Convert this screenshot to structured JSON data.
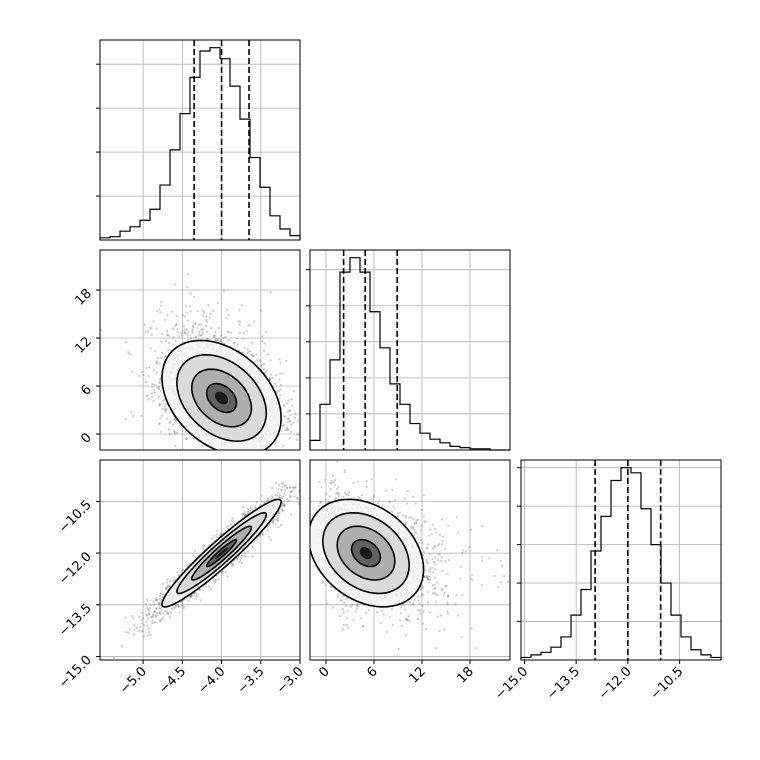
{
  "chart_data": {
    "type": "corner",
    "parameters": [
      {
        "ticks": [
          -5.0,
          -4.5,
          -4.0,
          -3.5,
          -3.0
        ],
        "tick_labels": [
          "−5.0",
          "−4.5",
          "−4.0",
          "−3.5",
          "−3.0"
        ],
        "range": [
          -5.55,
          -3.0
        ],
        "quantiles": [
          -4.35,
          -4.0,
          -3.65
        ]
      },
      {
        "ticks": [
          0,
          6,
          12,
          18
        ],
        "tick_labels": [
          "0",
          "6",
          "12",
          "18"
        ],
        "range": [
          -2.0,
          23.0
        ],
        "quantiles": [
          2.2,
          4.9,
          8.9
        ]
      },
      {
        "ticks": [
          -15.0,
          -13.5,
          -12.0,
          -10.5
        ],
        "tick_labels": [
          "−15.0",
          "−13.5",
          "−12.0",
          "−10.5"
        ],
        "range": [
          -15.1,
          -9.3
        ],
        "quantiles": [
          -12.95,
          -12.0,
          -11.05
        ]
      }
    ],
    "histograms": [
      {
        "param": 0,
        "counts": [
          2,
          3,
          8,
          12,
          18,
          28,
          50,
          82,
          115,
          148,
          172,
          175,
          165,
          140,
          110,
          75,
          48,
          22,
          10,
          4
        ]
      },
      {
        "param": 1,
        "counts": [
          8,
          38,
          75,
          148,
          160,
          148,
          115,
          85,
          55,
          38,
          22,
          14,
          9,
          6,
          3,
          2,
          1,
          1,
          0,
          0
        ]
      },
      {
        "param": 2,
        "counts": [
          2,
          4,
          6,
          10,
          18,
          35,
          55,
          85,
          112,
          140,
          150,
          146,
          118,
          90,
          60,
          35,
          18,
          8,
          4,
          2
        ]
      }
    ],
    "scatter_2d": [
      {
        "x_param": 0,
        "y_param": 1,
        "center": [
          -4.0,
          4.5
        ],
        "sd": [
          0.38,
          3.6
        ],
        "rho": -0.35
      },
      {
        "x_param": 0,
        "y_param": 2,
        "center": [
          -4.0,
          -12.0
        ],
        "sd": [
          0.38,
          0.78
        ],
        "rho": 0.95
      },
      {
        "x_param": 1,
        "y_param": 2,
        "center": [
          5.0,
          -12.0
        ],
        "sd": [
          3.6,
          0.78
        ],
        "rho": -0.3
      }
    ],
    "grid": true
  }
}
